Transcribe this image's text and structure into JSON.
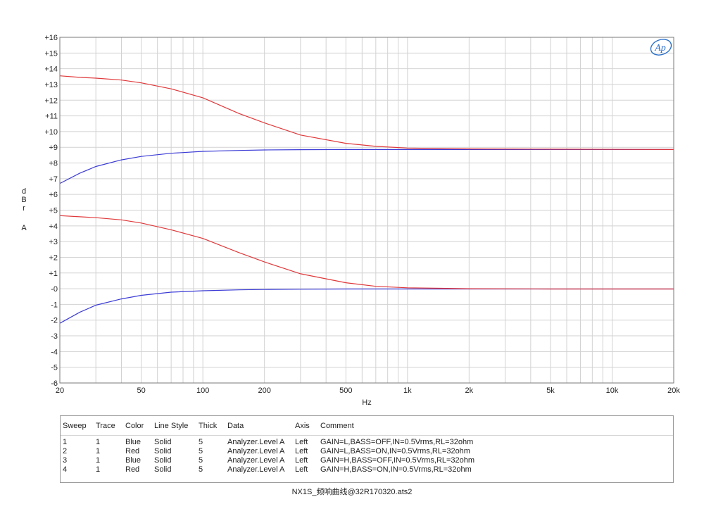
{
  "chart_data": {
    "type": "line",
    "title": "",
    "xlabel": "Hz",
    "ylabel": "dBr A",
    "xscale": "log",
    "xlim": [
      20,
      20000
    ],
    "ylim": [
      -6,
      16
    ],
    "grid": true,
    "x_tick_labels": [
      {
        "value": 20,
        "label": "20"
      },
      {
        "value": 50,
        "label": "50"
      },
      {
        "value": 100,
        "label": "100"
      },
      {
        "value": 200,
        "label": "200"
      },
      {
        "value": 500,
        "label": "500"
      },
      {
        "value": 1000,
        "label": "1k"
      },
      {
        "value": 2000,
        "label": "2k"
      },
      {
        "value": 5000,
        "label": "5k"
      },
      {
        "value": 10000,
        "label": "10k"
      },
      {
        "value": 20000,
        "label": "20k"
      }
    ],
    "y_tick_labels": [
      {
        "value": 16,
        "label": "+16"
      },
      {
        "value": 15,
        "label": "+15"
      },
      {
        "value": 14,
        "label": "+14"
      },
      {
        "value": 13,
        "label": "+13"
      },
      {
        "value": 12,
        "label": "+12"
      },
      {
        "value": 11,
        "label": "+11"
      },
      {
        "value": 10,
        "label": "+10"
      },
      {
        "value": 9,
        "label": "+9"
      },
      {
        "value": 8,
        "label": "+8"
      },
      {
        "value": 7,
        "label": "+7"
      },
      {
        "value": 6,
        "label": "+6"
      },
      {
        "value": 5,
        "label": "+5"
      },
      {
        "value": 4,
        "label": "+4"
      },
      {
        "value": 3,
        "label": "+3"
      },
      {
        "value": 2,
        "label": "+2"
      },
      {
        "value": 1,
        "label": "+1"
      },
      {
        "value": 0,
        "label": "-0"
      },
      {
        "value": -1,
        "label": "-1"
      },
      {
        "value": -2,
        "label": "-2"
      },
      {
        "value": -3,
        "label": "-3"
      },
      {
        "value": -4,
        "label": "-4"
      },
      {
        "value": -5,
        "label": "-5"
      },
      {
        "value": -6,
        "label": "-6"
      }
    ],
    "series": [
      {
        "sweep": "1",
        "color": "#3b3bd6",
        "x": [
          20,
          25,
          30,
          40,
          50,
          70,
          100,
          150,
          200,
          300,
          500,
          1000,
          2000,
          5000,
          20000
        ],
        "y": [
          -2.2,
          -1.5,
          -1.05,
          -0.65,
          -0.42,
          -0.22,
          -0.13,
          -0.07,
          -0.05,
          -0.03,
          -0.02,
          -0.02,
          -0.02,
          -0.02,
          -0.02
        ]
      },
      {
        "sweep": "2",
        "color": "#e0383a",
        "x": [
          20,
          25,
          30,
          40,
          50,
          70,
          100,
          150,
          200,
          300,
          500,
          700,
          1000,
          2000,
          5000,
          20000
        ],
        "y": [
          4.65,
          4.58,
          4.52,
          4.38,
          4.18,
          3.75,
          3.2,
          2.3,
          1.7,
          0.95,
          0.38,
          0.15,
          0.06,
          0.0,
          -0.02,
          -0.02
        ]
      },
      {
        "sweep": "3",
        "color": "#3b3bd6",
        "x": [
          20,
          25,
          30,
          40,
          50,
          70,
          100,
          150,
          200,
          300,
          500,
          1000,
          2000,
          5000,
          20000
        ],
        "y": [
          6.7,
          7.35,
          7.78,
          8.2,
          8.42,
          8.62,
          8.74,
          8.8,
          8.83,
          8.85,
          8.86,
          8.86,
          8.86,
          8.86,
          8.86
        ]
      },
      {
        "sweep": "4",
        "color": "#e0383a",
        "x": [
          20,
          25,
          30,
          40,
          50,
          70,
          100,
          150,
          200,
          300,
          500,
          700,
          1000,
          2000,
          5000,
          20000
        ],
        "y": [
          13.55,
          13.45,
          13.4,
          13.28,
          13.1,
          12.72,
          12.15,
          11.15,
          10.55,
          9.78,
          9.25,
          9.06,
          8.95,
          8.9,
          8.88,
          8.86
        ]
      }
    ]
  },
  "logo_text": "Ap",
  "legend": {
    "headers": [
      "Sweep",
      "Trace",
      "Color",
      "Line Style",
      "Thick",
      "Data",
      "Axis",
      "Comment"
    ],
    "rows": [
      [
        "1",
        "1",
        "Blue",
        "Solid",
        "5",
        "Analyzer.Level A",
        "Left",
        "GAIN=L,BASS=OFF,IN=0.5Vrms,RL=32ohm"
      ],
      [
        "2",
        "1",
        "Red",
        "Solid",
        "5",
        "Analyzer.Level A",
        "Left",
        "GAIN=L,BASS=ON,IN=0.5Vrms,RL=32ohm"
      ],
      [
        "3",
        "1",
        "Blue",
        "Solid",
        "5",
        "Analyzer.Level A",
        "Left",
        "GAIN=H,BASS=OFF,IN=0.5Vrms,RL=32ohm"
      ],
      [
        "4",
        "1",
        "Red",
        "Solid",
        "5",
        "Analyzer.Level A",
        "Left",
        "GAIN=H,BASS=ON,IN=0.5Vrms,RL=32ohm"
      ]
    ]
  },
  "footer_text": "NX1S_频响曲线@32R170320.ats2"
}
